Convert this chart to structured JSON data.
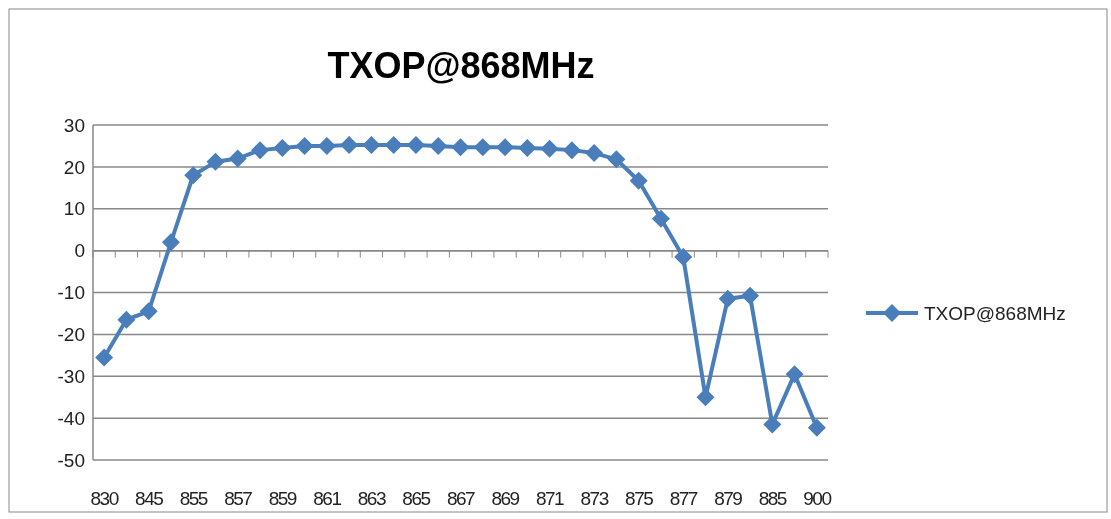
{
  "chart_data": {
    "type": "line",
    "title": "TXOP@868MHz",
    "categories": [
      "830",
      null,
      "845",
      null,
      "855",
      null,
      "857",
      null,
      "859",
      null,
      "861",
      null,
      "863",
      null,
      "865",
      null,
      "867",
      null,
      "869",
      null,
      "871",
      null,
      "873",
      null,
      "875",
      null,
      "877",
      null,
      "879",
      null,
      "885",
      null,
      "900"
    ],
    "series": [
      {
        "name": "TXOP@868MHz",
        "color": "#4a7ebb",
        "values": [
          -25.5,
          -16.5,
          -14.5,
          2,
          18,
          21.2,
          22,
          24,
          24.5,
          25,
          25,
          25.2,
          25.2,
          25.2,
          25.2,
          25,
          24.7,
          24.7,
          24.7,
          24.5,
          24.3,
          24,
          23.3,
          21.8,
          16.7,
          7.6,
          -1.5,
          -35,
          -11.5,
          -10.8,
          -41.5,
          -29.5,
          -42.3
        ]
      }
    ],
    "ylim": [
      -50,
      30
    ],
    "yticks": [
      -50,
      -40,
      -30,
      -20,
      -10,
      0,
      10,
      20,
      30
    ],
    "grid": "y",
    "legend": "right",
    "marker": "diamond"
  }
}
